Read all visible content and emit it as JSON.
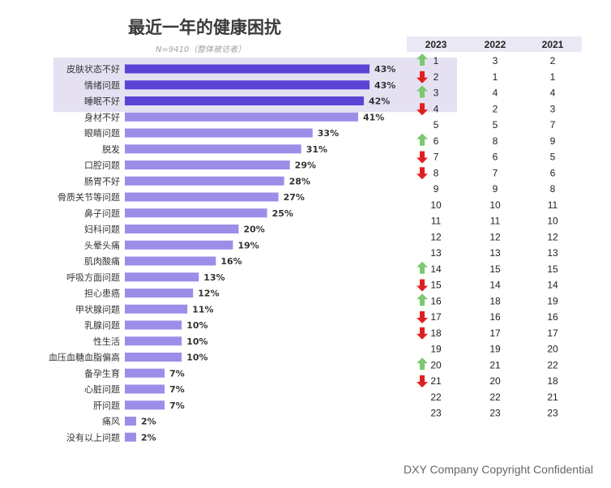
{
  "header": {
    "title": "最近一年的健康困扰",
    "subtitle": "N=9410（整体被访者）"
  },
  "footer": {
    "copyright": "DXY Company Copyright Confidential"
  },
  "colors": {
    "bar_highlight": "#5a44d6",
    "bar_normal": "#9c8ee8",
    "highlight_band": "#e5e1f3",
    "header_band": "#ebe8f5",
    "arrow_up": "#7bc96f",
    "arrow_down": "#e02020"
  },
  "chart_data": {
    "type": "bar",
    "orientation": "horizontal",
    "title": "最近一年的健康困扰",
    "subtitle": "N=9410（整体被访者）",
    "unit": "%",
    "highlighted_top": 3,
    "categories": [
      "皮肤状态不好",
      "情绪问题",
      "睡眠不好",
      "身材不好",
      "眼睛问题",
      "脱发",
      "口腔问题",
      "肠胃不好",
      "骨质关节等问题",
      "鼻子问题",
      "妇科问题",
      "头晕头痛",
      "肌肉酸痛",
      "呼吸方面问题",
      "担心患癌",
      "甲状腺问题",
      "乳腺问题",
      "性生活",
      "血压血糖血脂偏高",
      "备孕生育",
      "心脏问题",
      "肝问题",
      "痛风",
      "没有以上问题"
    ],
    "values": [
      43,
      43,
      42,
      41,
      33,
      31,
      29,
      28,
      27,
      25,
      20,
      19,
      16,
      13,
      12,
      11,
      10,
      10,
      10,
      7,
      7,
      7,
      2,
      2
    ],
    "value_labels": [
      "43%",
      "43%",
      "42%",
      "41%",
      "33%",
      "31%",
      "29%",
      "28%",
      "27%",
      "25%",
      "20%",
      "19%",
      "16%",
      "13%",
      "12%",
      "11%",
      "10%",
      "10%",
      "10%",
      "7%",
      "7%",
      "7%",
      "2%",
      "2%"
    ],
    "xlim": [
      0,
      45
    ]
  },
  "rank_table": {
    "headers": [
      "2023",
      "2022",
      "2021"
    ],
    "rows": [
      {
        "r2023": "1",
        "r2022": "3",
        "r2021": "2",
        "trend": "up"
      },
      {
        "r2023": "2",
        "r2022": "1",
        "r2021": "1",
        "trend": "down"
      },
      {
        "r2023": "3",
        "r2022": "4",
        "r2021": "4",
        "trend": "up"
      },
      {
        "r2023": "4",
        "r2022": "2",
        "r2021": "3",
        "trend": "down"
      },
      {
        "r2023": "5",
        "r2022": "5",
        "r2021": "7",
        "trend": ""
      },
      {
        "r2023": "6",
        "r2022": "8",
        "r2021": "9",
        "trend": "up"
      },
      {
        "r2023": "7",
        "r2022": "6",
        "r2021": "5",
        "trend": "down"
      },
      {
        "r2023": "8",
        "r2022": "7",
        "r2021": "6",
        "trend": "down"
      },
      {
        "r2023": "9",
        "r2022": "9",
        "r2021": "8",
        "trend": ""
      },
      {
        "r2023": "10",
        "r2022": "10",
        "r2021": "11",
        "trend": ""
      },
      {
        "r2023": "11",
        "r2022": "11",
        "r2021": "10",
        "trend": ""
      },
      {
        "r2023": "12",
        "r2022": "12",
        "r2021": "12",
        "trend": ""
      },
      {
        "r2023": "13",
        "r2022": "13",
        "r2021": "13",
        "trend": ""
      },
      {
        "r2023": "14",
        "r2022": "15",
        "r2021": "15",
        "trend": "up"
      },
      {
        "r2023": "15",
        "r2022": "14",
        "r2021": "14",
        "trend": "down"
      },
      {
        "r2023": "16",
        "r2022": "18",
        "r2021": "19",
        "trend": "up"
      },
      {
        "r2023": "17",
        "r2022": "16",
        "r2021": "16",
        "trend": "down"
      },
      {
        "r2023": "18",
        "r2022": "17",
        "r2021": "17",
        "trend": "down"
      },
      {
        "r2023": "19",
        "r2022": "19",
        "r2021": "20",
        "trend": ""
      },
      {
        "r2023": "20",
        "r2022": "21",
        "r2021": "22",
        "trend": "up"
      },
      {
        "r2023": "21",
        "r2022": "20",
        "r2021": "18",
        "trend": "down"
      },
      {
        "r2023": "22",
        "r2022": "22",
        "r2021": "21",
        "trend": ""
      },
      {
        "r2023": "23",
        "r2022": "23",
        "r2021": "23",
        "trend": ""
      }
    ]
  }
}
